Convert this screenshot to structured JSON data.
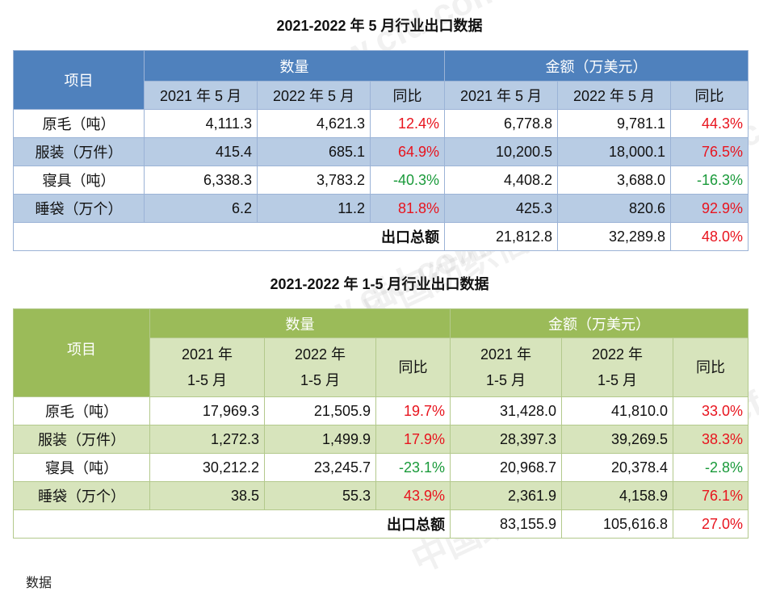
{
  "watermark": "中国纺织信息网 www.cfd.com.cn",
  "table1": {
    "title": "2021-2022 年 5 月行业出口数据",
    "item_header": "项目",
    "qty_header": "数量",
    "amt_header": "金额（万美元）",
    "sub_headers": [
      "2021 年 5 月",
      "2022 年 5 月",
      "同比",
      "2021 年 5 月",
      "2022 年 5 月",
      "同比"
    ],
    "rows": [
      {
        "item": "原毛（吨）",
        "q2021": "4,111.3",
        "q2022": "4,621.3",
        "qyoy": "12.4%",
        "a2021": "6,778.8",
        "a2022": "9,781.1",
        "ayoy": "44.3%"
      },
      {
        "item": "服装（万件）",
        "q2021": "415.4",
        "q2022": "685.1",
        "qyoy": "64.9%",
        "a2021": "10,200.5",
        "a2022": "18,000.1",
        "ayoy": "76.5%"
      },
      {
        "item": "寝具（吨）",
        "q2021": "6,338.3",
        "q2022": "3,783.2",
        "qyoy": "-40.3%",
        "a2021": "4,408.2",
        "a2022": "3,688.0",
        "ayoy": "-16.3%"
      },
      {
        "item": "睡袋（万个）",
        "q2021": "6.2",
        "q2022": "11.2",
        "qyoy": "81.8%",
        "a2021": "425.3",
        "a2022": "820.6",
        "ayoy": "92.9%"
      }
    ],
    "total": {
      "label": "出口总额",
      "a2021": "21,812.8",
      "a2022": "32,289.8",
      "ayoy": "48.0%"
    }
  },
  "table2": {
    "title": "2021-2022 年 1-5 月行业出口数据",
    "item_header": "项目",
    "qty_header": "数量",
    "amt_header": "金额（万美元）",
    "sub_year_2021": "2021 年",
    "sub_year_2022": "2022 年",
    "sub_months": "1-5 月",
    "yoy_header": "同比",
    "rows": [
      {
        "item": "原毛（吨）",
        "q2021": "17,969.3",
        "q2022": "21,505.9",
        "qyoy": "19.7%",
        "a2021": "31,428.0",
        "a2022": "41,810.0",
        "ayoy": "33.0%"
      },
      {
        "item": "服装（万件）",
        "q2021": "1,272.3",
        "q2022": "1,499.9",
        "qyoy": "17.9%",
        "a2021": "28,397.3",
        "a2022": "39,269.5",
        "ayoy": "38.3%"
      },
      {
        "item": "寝具（吨）",
        "q2021": "30,212.2",
        "q2022": "23,245.7",
        "qyoy": "-23.1%",
        "a2021": "20,968.7",
        "a2022": "20,378.4",
        "ayoy": "-2.8%"
      },
      {
        "item": "睡袋（万个）",
        "q2021": "38.5",
        "q2022": "55.3",
        "qyoy": "43.9%",
        "a2021": "2,361.9",
        "a2022": "4,158.9",
        "ayoy": "76.1%"
      }
    ],
    "total": {
      "label": "出口总额",
      "a2021": "83,155.9",
      "a2022": "105,616.8",
      "ayoy": "27.0%"
    }
  },
  "colors": {
    "positive": "#e8141e",
    "negative": "#1a9a3a",
    "blue_header": "#4f81bd",
    "green_header": "#9bbb59"
  },
  "footer_fragment": "数据"
}
